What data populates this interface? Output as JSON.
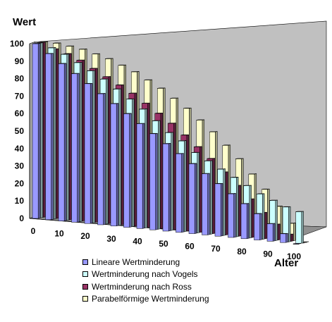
{
  "chart_data": {
    "type": "bar",
    "ylabel": "Wert",
    "xlabel": "Alter",
    "ylim": [
      0,
      100
    ],
    "yticks": [
      0,
      10,
      20,
      30,
      40,
      50,
      60,
      70,
      80,
      90,
      100
    ],
    "xtick_labels": [
      "0",
      "10",
      "20",
      "30",
      "40",
      "50",
      "60",
      "70",
      "80",
      "90",
      "100"
    ],
    "categories": [
      0,
      5,
      10,
      15,
      20,
      25,
      30,
      35,
      40,
      45,
      50,
      55,
      60,
      65,
      70,
      75,
      80,
      85,
      90,
      95,
      100
    ],
    "series": [
      {
        "name": "Lineare Wertminderung",
        "color": "#9999ff",
        "values": [
          100,
          95,
          90,
          85,
          80,
          75,
          70,
          65,
          60,
          55,
          50,
          45,
          40,
          35,
          30,
          25,
          20,
          15,
          10,
          5,
          0
        ]
      },
      {
        "name": "Wertminderung nach Vogels",
        "color": "#ccffff",
        "values": [
          100,
          98,
          95,
          91,
          87,
          83,
          78,
          73,
          68,
          62,
          56,
          52,
          46,
          42,
          38,
          34,
          30,
          26,
          23,
          20,
          18
        ]
      },
      {
        "name": "Wertminderung nach Ross",
        "color": "#993366",
        "values": [
          100,
          97,
          95,
          92,
          88,
          84,
          80,
          76,
          71,
          66,
          61,
          55,
          49,
          43,
          36,
          29,
          22,
          15,
          9,
          4,
          0
        ]
      },
      {
        "name": "Parabelförmige Wertminderung",
        "color": "#ffffcc",
        "values": [
          100,
          100,
          99,
          98,
          96,
          94,
          91,
          88,
          84,
          80,
          75,
          70,
          64,
          58,
          51,
          44,
          36,
          28,
          19,
          10,
          0
        ]
      }
    ],
    "grid": false,
    "legend_position": "bottom"
  }
}
